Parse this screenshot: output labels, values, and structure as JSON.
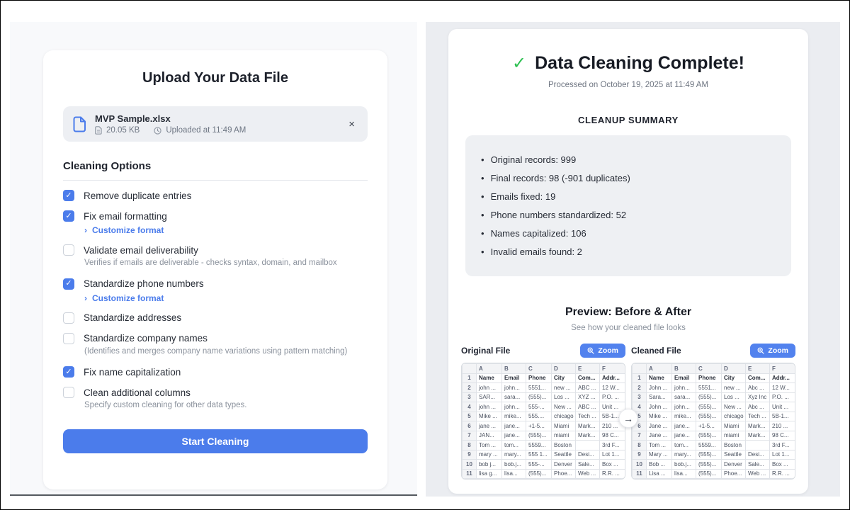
{
  "icons": {
    "check": "✓",
    "close": "×",
    "chevron": "›",
    "arrow": "→"
  },
  "colors": {
    "accent": "#4b7ceb",
    "success": "#2fc153",
    "card_bg": "#ffffff",
    "left_bg": "#f8f9fb",
    "right_bg": "#ebedf1"
  },
  "left_panel": {
    "title": "Upload Your Data File",
    "file_card": {
      "name": "MVP Sample.xlsx",
      "size": "20.05 KB",
      "uploaded": "Uploaded at 11:49 AM"
    },
    "section_title": "Cleaning Options",
    "options": [
      {
        "label": "Remove duplicate entries",
        "checked": true
      },
      {
        "label": "Fix email formatting",
        "checked": true,
        "link": "Customize format"
      },
      {
        "label": "Validate email deliverability",
        "checked": false,
        "description": "Verifies if emails are deliverable - checks syntax, domain, and mailbox"
      },
      {
        "label": "Standardize phone numbers",
        "checked": true,
        "link": "Customize format"
      },
      {
        "label": "Standardize addresses",
        "checked": false
      },
      {
        "label": "Standardize company names",
        "checked": false,
        "description": "(Identifies and merges company name variations using pattern matching)"
      },
      {
        "label": "Fix name capitalization",
        "checked": true
      },
      {
        "label": "Clean additional columns",
        "checked": false,
        "description": "Specify custom cleaning for other data types."
      }
    ],
    "start_button": "Start Cleaning"
  },
  "right_panel": {
    "title": "Data Cleaning Complete!",
    "processed": "Processed on October 19, 2025 at 11:49 AM",
    "summary_title": "CLEANUP SUMMARY",
    "summary_items": [
      "Original records: 999",
      "Final records: 98 (-901 duplicates)",
      "Emails fixed: 19",
      "Phone numbers standardized: 52",
      "Names capitalized: 106",
      "Invalid emails found: 2"
    ],
    "preview_title": "Preview: Before & After",
    "preview_subtitle": "See how your cleaned file looks",
    "zoom_label": "Zoom",
    "col_letters": [
      "A",
      "B",
      "C",
      "D",
      "E",
      "F"
    ],
    "tables": [
      {
        "label": "Original File",
        "rows": [
          [
            "1",
            "Name",
            "Email",
            "Phone",
            "City",
            "Com...",
            "Addr..."
          ],
          [
            "2",
            "john ...",
            "john...",
            "5551...",
            "new ...",
            "ABC ...",
            "12 W..."
          ],
          [
            "3",
            "SAR...",
            "sara...",
            "(555)...",
            "Los ...",
            "XYZ ...",
            "P.O. ..."
          ],
          [
            "4",
            "john ...",
            "john...",
            "555-...",
            "New ...",
            "ABC ...",
            "Unit ..."
          ],
          [
            "5",
            "Mike ...",
            "mike...",
            "555....",
            "chicago",
            "Tech ...",
            "5B-1..."
          ],
          [
            "6",
            "jane ...",
            "jane...",
            "+1-5...",
            "Miami",
            "Mark...",
            "210 ..."
          ],
          [
            "7",
            "JAN...",
            "jane...",
            "(555)...",
            "miami",
            "Mark...",
            "98 C..."
          ],
          [
            "8",
            "Tom ...",
            "tom...",
            "5559...",
            "Boston",
            "",
            "3rd F..."
          ],
          [
            "9",
            "mary ...",
            "mary...",
            "555 1...",
            "Seattle",
            "Desi...",
            "Lot 1..."
          ],
          [
            "10",
            "bob j...",
            "bob.j...",
            "555-...",
            "Denver",
            "Sale...",
            "Box ..."
          ],
          [
            "11",
            "lisa g...",
            "lisa...",
            "(555)...",
            "Phoe...",
            "Web ...",
            "R.R. ..."
          ]
        ]
      },
      {
        "label": "Cleaned File",
        "rows": [
          [
            "1",
            "Name",
            "Email",
            "Phone",
            "City",
            "Com...",
            "Addr..."
          ],
          [
            "2",
            "John ...",
            "john...",
            "5551...",
            "new ...",
            "Abc ...",
            "12 W..."
          ],
          [
            "3",
            "Sara...",
            "sara...",
            "(555)...",
            "Los ...",
            "Xyz Inc",
            "P.O. ..."
          ],
          [
            "4",
            "John ...",
            "john...",
            "(555)...",
            "New ...",
            "Abc ...",
            "Unit ..."
          ],
          [
            "5",
            "Mike ...",
            "mike...",
            "(555)...",
            "chicago",
            "Tech ...",
            "5B-1..."
          ],
          [
            "6",
            "Jane ...",
            "jane...",
            "+1-5...",
            "Miami",
            "Mark...",
            "210 ..."
          ],
          [
            "7",
            "Jane ...",
            "jane...",
            "(555)...",
            "miami",
            "Mark...",
            "98 C..."
          ],
          [
            "8",
            "Tom ...",
            "tom...",
            "5559...",
            "Boston",
            "",
            "3rd F..."
          ],
          [
            "9",
            "Mary ...",
            "mary...",
            "(555)...",
            "Seattle",
            "Desi...",
            "Lot 1..."
          ],
          [
            "10",
            "Bob ...",
            "bob.j...",
            "(555)...",
            "Denver",
            "Sale...",
            "Box ..."
          ],
          [
            "11",
            "Lisa ...",
            "lisa...",
            "(555)...",
            "Phoe...",
            "Web ...",
            "R.R. ..."
          ]
        ]
      }
    ]
  }
}
